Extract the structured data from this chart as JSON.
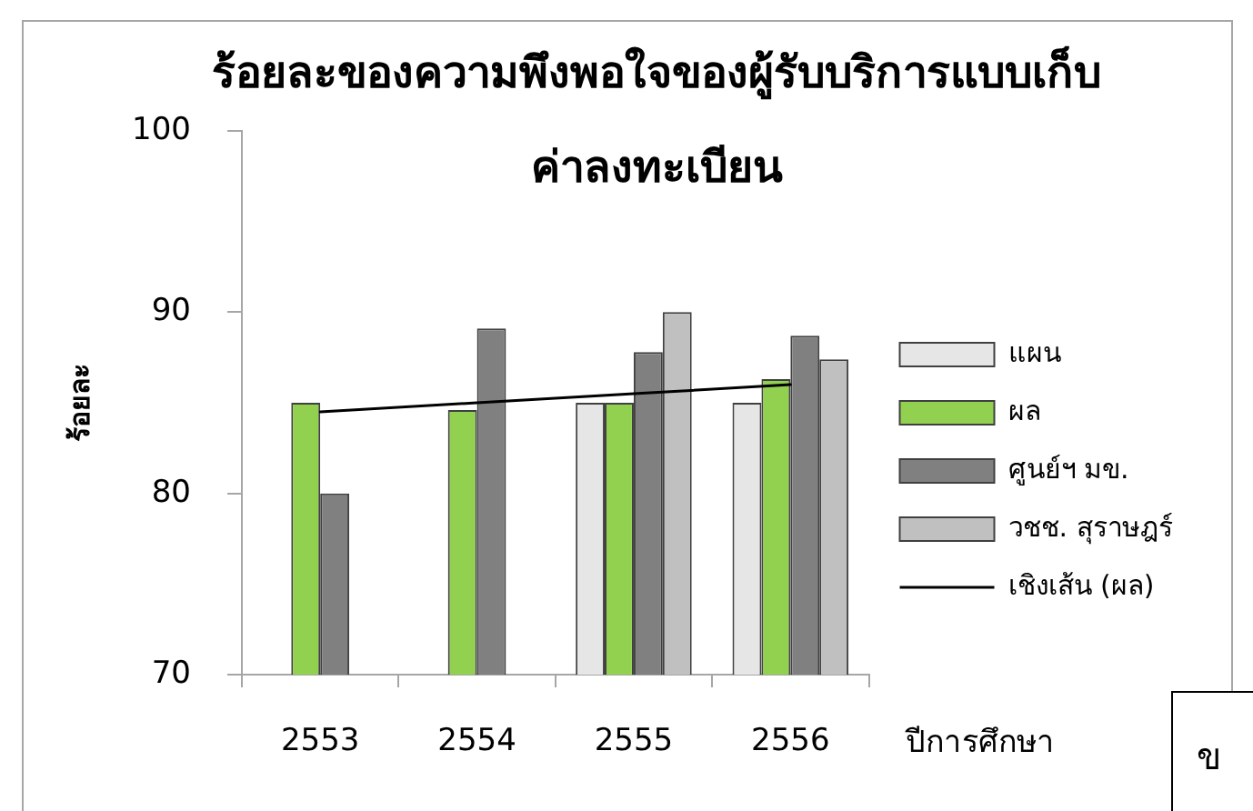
{
  "chart_data": {
    "type": "bar",
    "title": "ร้อยละของความพึงพอใจของผู้รับบริการแบบเก็บค่าลงทะเบียน",
    "xlabel": "ปีการศึกษา",
    "ylabel": "ร้อยละ",
    "categories": [
      "2553",
      "2554",
      "2555",
      "2556"
    ],
    "series": [
      {
        "name": "แผน",
        "color": "#e6e6e6",
        "values": [
          null,
          null,
          85,
          85
        ]
      },
      {
        "name": "ผล",
        "color": "#92d050",
        "values": [
          85,
          84.6,
          85,
          86.3
        ]
      },
      {
        "name": "ศูนย์ฯ มข.",
        "color": "#808080",
        "values": [
          80,
          89.1,
          87.8,
          88.7
        ]
      },
      {
        "name": "วชช. สุราษฎร์",
        "color": "#c0c0c0",
        "values": [
          null,
          null,
          90,
          87.4
        ]
      },
      {
        "name": "เชิงเส้น (ผล)",
        "type": "line",
        "color": "#000000",
        "values": [
          84.5,
          85.0,
          85.5,
          86.0
        ]
      }
    ],
    "ylim": [
      70,
      100
    ],
    "yticks": [
      70,
      80,
      90,
      100
    ],
    "legend": "right",
    "annotations": [
      "ข"
    ]
  }
}
